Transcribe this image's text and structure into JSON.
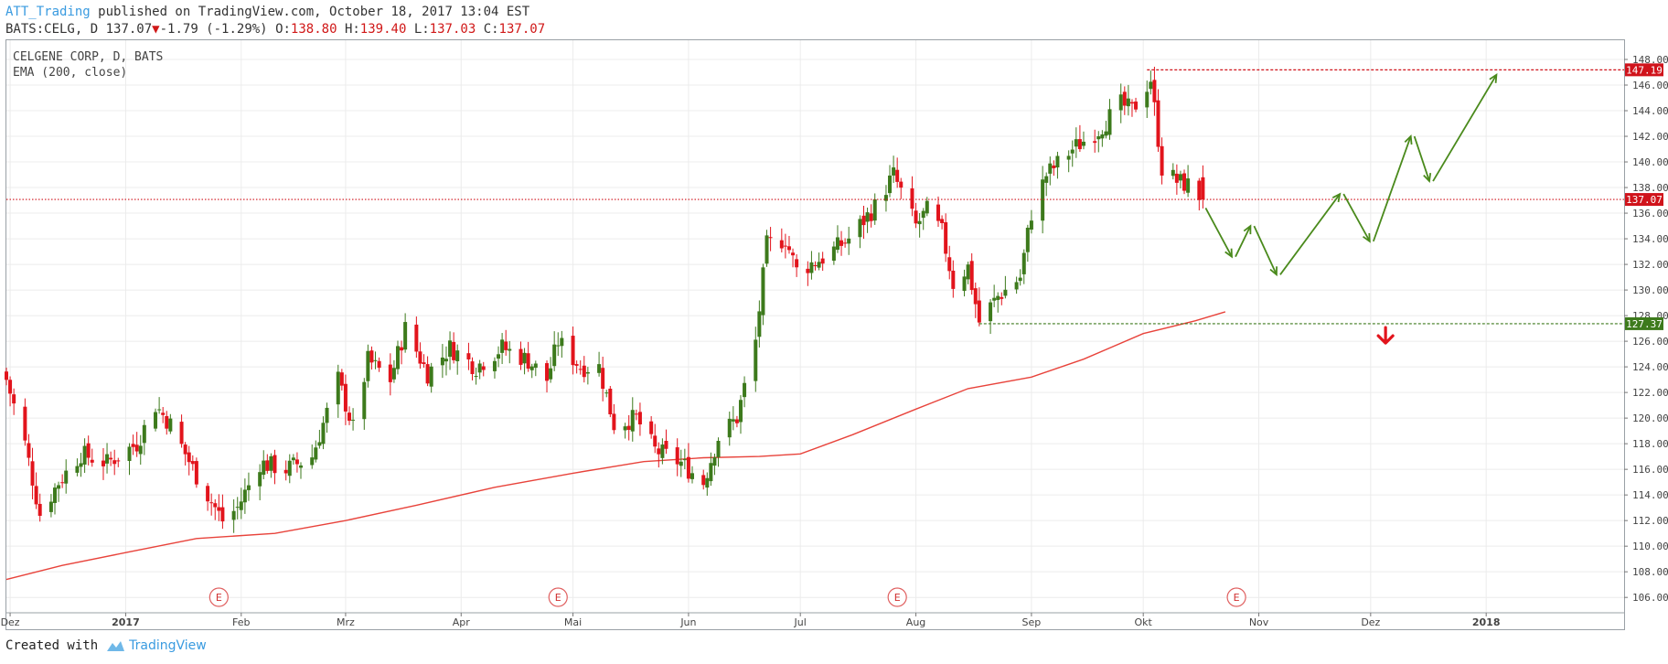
{
  "header": {
    "author": "ATT_Trading",
    "published_text": " published on TradingView.com, October 18, 2017 13:04 EST",
    "symbol_line": "BATS:CELG, D",
    "last_price": "137.07",
    "down_arrow": "▼",
    "change": "-1.79 (-1.29%)",
    "o_label": "O:",
    "o_value": "138.80",
    "h_label": "H:",
    "h_value": "139.40",
    "l_label": "L:",
    "l_value": "137.03",
    "c_label": "C:",
    "c_value": "137.07"
  },
  "legend": {
    "instrument": "CELGENE CORP, D, BATS",
    "indicator": "EMA (200, close)"
  },
  "footer": {
    "created_with": "Created with",
    "brand": "TradingView"
  },
  "colors": {
    "bull": "#3d7a1c",
    "bear": "#e2141c",
    "ema": "#e8433b",
    "grid": "#ececec",
    "resistance": "#d0131b",
    "support": "#3d7a1c",
    "projection": "#4a8a1c"
  },
  "chart_data": {
    "type": "candlestick",
    "title": "CELGENE CORP, D, BATS",
    "indicator": "EMA (200, close)",
    "x_tick_labels": [
      "Dez",
      "2017",
      "Feb",
      "Mrz",
      "Apr",
      "Mai",
      "Jun",
      "Jul",
      "Aug",
      "Sep",
      "Okt",
      "Nov",
      "Dez",
      "2018"
    ],
    "y_tick_labels": [
      "148.00",
      "146.00",
      "144.00",
      "142.00",
      "140.00",
      "138.00",
      "136.00",
      "134.00",
      "132.00",
      "130.00",
      "128.00",
      "126.00",
      "124.00",
      "122.00",
      "120.00",
      "118.00",
      "116.00",
      "114.00",
      "112.00",
      "110.00",
      "108.00",
      "106.00"
    ],
    "ylim": [
      104.8,
      149.5
    ],
    "xlim": [
      "2016-11-30",
      "2018-02-07"
    ],
    "price_labels": [
      {
        "value": 147.19,
        "text": "147.19",
        "kind": "resistance"
      },
      {
        "value": 137.07,
        "text": "137.07",
        "kind": "last"
      },
      {
        "value": 127.37,
        "text": "127.37",
        "kind": "support"
      }
    ],
    "earnings_markers": {
      "label": "E",
      "dates": [
        "2017-01-26",
        "2017-04-27",
        "2017-07-27",
        "2017-10-26"
      ]
    },
    "horizontal_lines": [
      {
        "value": 147.19,
        "from": "2017-10-02",
        "style": "dashed",
        "kind": "resistance"
      },
      {
        "value": 137.07,
        "from": "2016-11-30",
        "style": "dotted",
        "kind": "last"
      },
      {
        "value": 127.37,
        "from": "2017-08-18",
        "style": "dashed",
        "kind": "support"
      }
    ],
    "candle_anchors": [
      [
        "2016-11-30",
        123
      ],
      [
        "2016-12-05",
        118
      ],
      [
        "2016-12-09",
        112.5
      ],
      [
        "2016-12-14",
        115
      ],
      [
        "2016-12-20",
        117.2
      ],
      [
        "2016-12-27",
        116.5
      ],
      [
        "2017-01-04",
        118
      ],
      [
        "2017-01-09",
        121
      ],
      [
        "2017-01-13",
        119.5
      ],
      [
        "2017-01-20",
        115.5
      ],
      [
        "2017-01-27",
        112
      ],
      [
        "2017-01-31",
        113
      ],
      [
        "2017-02-06",
        116.5
      ],
      [
        "2017-02-13",
        116
      ],
      [
        "2017-02-20",
        117
      ],
      [
        "2017-02-27",
        123
      ],
      [
        "2017-03-03",
        119.2
      ],
      [
        "2017-03-07",
        124.5
      ],
      [
        "2017-03-13",
        123
      ],
      [
        "2017-03-17",
        127
      ],
      [
        "2017-03-23",
        123.5
      ],
      [
        "2017-03-29",
        125.5
      ],
      [
        "2017-04-05",
        124
      ],
      [
        "2017-04-12",
        125.5
      ],
      [
        "2017-04-19",
        124.5
      ],
      [
        "2017-04-24",
        123
      ],
      [
        "2017-04-27",
        126
      ],
      [
        "2017-05-03",
        124
      ],
      [
        "2017-05-08",
        124
      ],
      [
        "2017-05-12",
        119.5
      ],
      [
        "2017-05-18",
        120
      ],
      [
        "2017-05-23",
        117.5
      ],
      [
        "2017-05-30",
        116.5
      ],
      [
        "2017-06-05",
        115
      ],
      [
        "2017-06-09",
        118.5
      ],
      [
        "2017-06-14",
        120
      ],
      [
        "2017-06-19",
        126
      ],
      [
        "2017-06-22",
        133.5
      ],
      [
        "2017-06-27",
        134
      ],
      [
        "2017-06-30",
        131.5
      ],
      [
        "2017-07-07",
        132.5
      ],
      [
        "2017-07-14",
        134
      ],
      [
        "2017-07-21",
        136.5
      ],
      [
        "2017-07-26",
        139
      ],
      [
        "2017-08-01",
        135
      ],
      [
        "2017-08-04",
        136.2
      ],
      [
        "2017-08-08",
        134.5
      ],
      [
        "2017-08-11",
        130.5
      ],
      [
        "2017-08-15",
        131.8
      ],
      [
        "2017-08-18",
        127.5
      ],
      [
        "2017-08-23",
        129.5
      ],
      [
        "2017-08-29",
        131
      ],
      [
        "2017-09-01",
        136
      ],
      [
        "2017-09-05",
        139
      ],
      [
        "2017-09-12",
        141
      ],
      [
        "2017-09-19",
        142.5
      ],
      [
        "2017-09-25",
        144.5
      ],
      [
        "2017-09-28",
        144
      ],
      [
        "2017-10-03",
        146.5
      ],
      [
        "2017-10-06",
        139.5
      ],
      [
        "2017-10-10",
        138.5
      ],
      [
        "2017-10-13",
        138.2
      ],
      [
        "2017-10-17",
        137.07
      ]
    ],
    "ema_points": [
      [
        "2016-11-30",
        107.4
      ],
      [
        "2016-12-15",
        108.5
      ],
      [
        "2017-01-01",
        109.5
      ],
      [
        "2017-01-20",
        110.6
      ],
      [
        "2017-02-10",
        111
      ],
      [
        "2017-03-01",
        112
      ],
      [
        "2017-03-20",
        113.2
      ],
      [
        "2017-04-10",
        114.6
      ],
      [
        "2017-05-01",
        115.7
      ],
      [
        "2017-05-20",
        116.6
      ],
      [
        "2017-06-05",
        116.9
      ],
      [
        "2017-06-20",
        117
      ],
      [
        "2017-07-01",
        117.2
      ],
      [
        "2017-07-15",
        118.7
      ],
      [
        "2017-08-01",
        120.7
      ],
      [
        "2017-08-15",
        122.3
      ],
      [
        "2017-09-01",
        123.2
      ],
      [
        "2017-09-15",
        124.6
      ],
      [
        "2017-10-01",
        126.6
      ],
      [
        "2017-10-15",
        127.6
      ],
      [
        "2017-10-23",
        128.3
      ]
    ],
    "projection_path": [
      [
        "2017-10-17",
        136.4
      ],
      [
        "2017-10-25",
        132.6
      ],
      [
        "2017-10-30",
        135
      ],
      [
        "2017-11-06",
        131.2
      ],
      [
        "2017-11-23",
        137.5
      ],
      [
        "2017-12-01",
        133.8
      ],
      [
        "2017-12-12",
        142
      ],
      [
        "2017-12-17",
        138.5
      ],
      [
        "2018-01-04",
        146.8
      ]
    ],
    "down_marker": {
      "date": "2017-12-05",
      "value": 126.5
    }
  }
}
